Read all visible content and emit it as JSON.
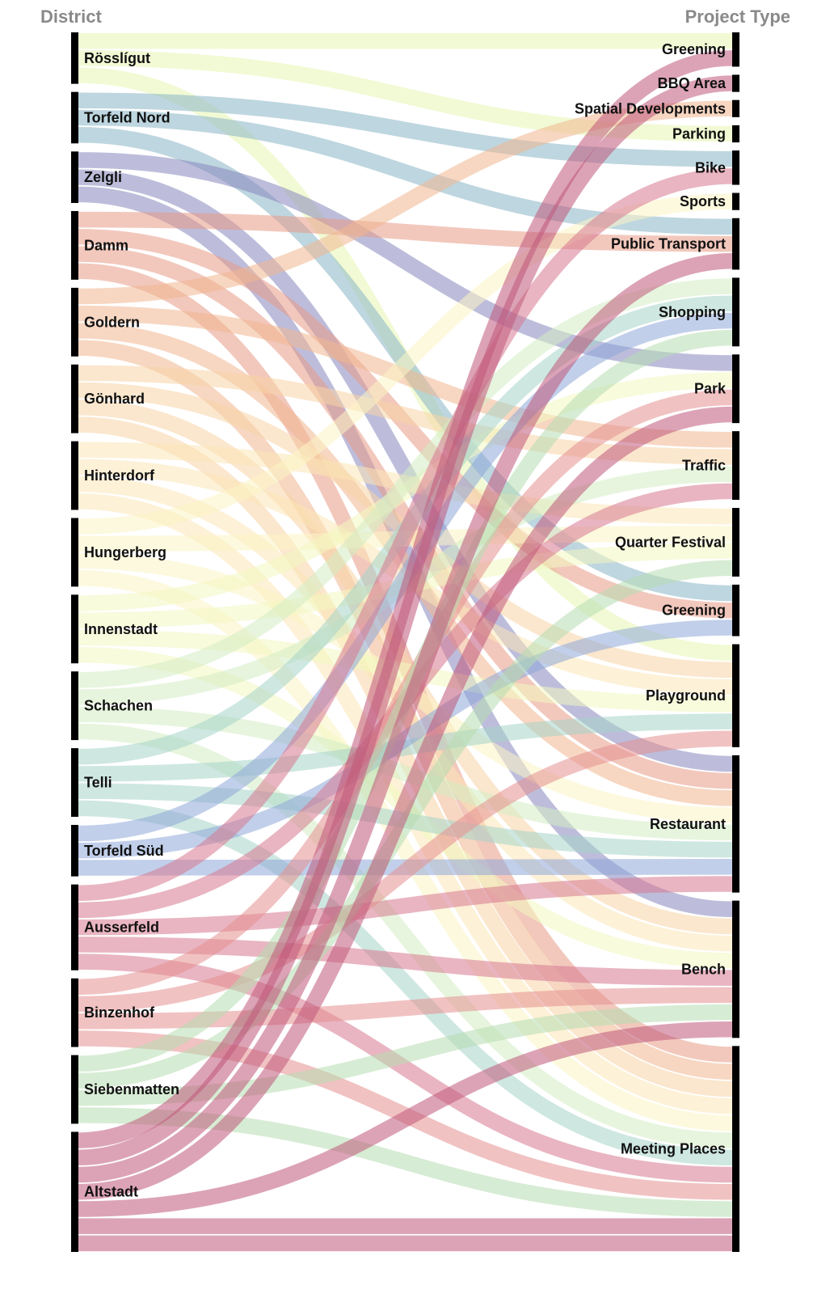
{
  "headers": {
    "left": "District",
    "right": "Project Type"
  },
  "chart_data": {
    "type": "sankey",
    "districts": [
      {
        "name": "Rösslígut",
        "color": "#e6f5b0"
      },
      {
        "name": "Torfeld Nord",
        "color": "#88b4c4"
      },
      {
        "name": "Zelgli",
        "color": "#8787be"
      },
      {
        "name": "Damm",
        "color": "#e89a86"
      },
      {
        "name": "Goldern",
        "color": "#f0b690"
      },
      {
        "name": "Gönhard",
        "color": "#f8d4a6"
      },
      {
        "name": "Hinterdorf",
        "color": "#fbe6b6"
      },
      {
        "name": "Hungerberg",
        "color": "#fcf4c4"
      },
      {
        "name": "Innenstadt",
        "color": "#f2f7c0"
      },
      {
        "name": "Schachen",
        "color": "#d4ecc2"
      },
      {
        "name": "Telli",
        "color": "#a6d3c8"
      },
      {
        "name": "Torfeld Süd",
        "color": "#8ea8d8"
      },
      {
        "name": "Ausserfeld",
        "color": "#d77890"
      },
      {
        "name": "Binzenhof",
        "color": "#e69090"
      },
      {
        "name": "Siebenmatten",
        "color": "#b6dcb0"
      },
      {
        "name": "Altstadt",
        "color": "#c0587a"
      }
    ],
    "project_types": [
      "Greening",
      "BBQ Area",
      "Spatial Developments",
      "Parking",
      "Bike",
      "Sports",
      "Public Transport",
      "Shopping",
      "Park",
      "Traffic",
      "Quarter Festival",
      "Greening",
      "Playground",
      "Restaurant",
      "Bench",
      "Meeting Places"
    ],
    "links": [
      {
        "source": "Rösslígut",
        "target": 0
      },
      {
        "source": "Rösslígut",
        "target": 3
      },
      {
        "source": "Rösslígut",
        "target": 12
      },
      {
        "source": "Torfeld Nord",
        "target": 4
      },
      {
        "source": "Torfeld Nord",
        "target": 6
      },
      {
        "source": "Torfeld Nord",
        "target": 11
      },
      {
        "source": "Zelgli",
        "target": 8
      },
      {
        "source": "Zelgli",
        "target": 13
      },
      {
        "source": "Zelgli",
        "target": 14
      },
      {
        "source": "Damm",
        "target": 6
      },
      {
        "source": "Damm",
        "target": 11
      },
      {
        "source": "Damm",
        "target": 13
      },
      {
        "source": "Damm",
        "target": 15
      },
      {
        "source": "Goldern",
        "target": 2
      },
      {
        "source": "Goldern",
        "target": 9
      },
      {
        "source": "Goldern",
        "target": 13
      },
      {
        "source": "Goldern",
        "target": 15
      },
      {
        "source": "Gönhard",
        "target": 9
      },
      {
        "source": "Gönhard",
        "target": 12
      },
      {
        "source": "Gönhard",
        "target": 14
      },
      {
        "source": "Gönhard",
        "target": 15
      },
      {
        "source": "Hinterdorf",
        "target": 10
      },
      {
        "source": "Hinterdorf",
        "target": 12
      },
      {
        "source": "Hinterdorf",
        "target": 14
      },
      {
        "source": "Hinterdorf",
        "target": 15
      },
      {
        "source": "Hungerberg",
        "target": 5
      },
      {
        "source": "Hungerberg",
        "target": 10
      },
      {
        "source": "Hungerberg",
        "target": 13
      },
      {
        "source": "Hungerberg",
        "target": 15
      },
      {
        "source": "Innenstadt",
        "target": 8
      },
      {
        "source": "Innenstadt",
        "target": 10
      },
      {
        "source": "Innenstadt",
        "target": 12
      },
      {
        "source": "Innenstadt",
        "target": 14
      },
      {
        "source": "Schachen",
        "target": 7
      },
      {
        "source": "Schachen",
        "target": 9
      },
      {
        "source": "Schachen",
        "target": 13
      },
      {
        "source": "Schachen",
        "target": 15
      },
      {
        "source": "Telli",
        "target": 7
      },
      {
        "source": "Telli",
        "target": 12
      },
      {
        "source": "Telli",
        "target": 13
      },
      {
        "source": "Telli",
        "target": 15
      },
      {
        "source": "Torfeld Süd",
        "target": 7
      },
      {
        "source": "Torfeld Süd",
        "target": 11
      },
      {
        "source": "Torfeld Süd",
        "target": 13
      },
      {
        "source": "Ausserfeld",
        "target": 4
      },
      {
        "source": "Ausserfeld",
        "target": 9
      },
      {
        "source": "Ausserfeld",
        "target": 13
      },
      {
        "source": "Ausserfeld",
        "target": 14
      },
      {
        "source": "Ausserfeld",
        "target": 15
      },
      {
        "source": "Binzenhof",
        "target": 8
      },
      {
        "source": "Binzenhof",
        "target": 12
      },
      {
        "source": "Binzenhof",
        "target": 14
      },
      {
        "source": "Binzenhof",
        "target": 15
      },
      {
        "source": "Siebenmatten",
        "target": 7
      },
      {
        "source": "Siebenmatten",
        "target": 10
      },
      {
        "source": "Siebenmatten",
        "target": 14
      },
      {
        "source": "Siebenmatten",
        "target": 15
      },
      {
        "source": "Altstadt",
        "target": 0
      },
      {
        "source": "Altstadt",
        "target": 1
      },
      {
        "source": "Altstadt",
        "target": 6
      },
      {
        "source": "Altstadt",
        "target": 8
      },
      {
        "source": "Altstadt",
        "target": 14
      },
      {
        "source": "Altstadt",
        "target": 15
      },
      {
        "source": "Altstadt",
        "target": 15
      }
    ]
  }
}
